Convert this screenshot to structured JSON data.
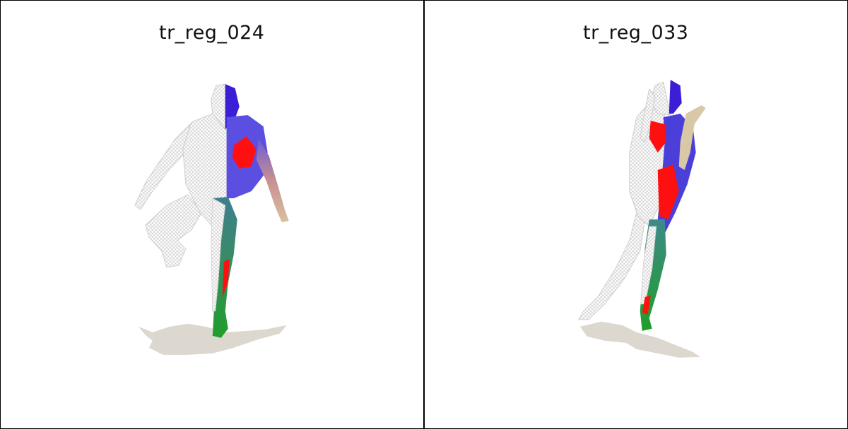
{
  "panels": [
    {
      "title": "tr_reg_024"
    },
    {
      "title": "tr_reg_033"
    }
  ],
  "colors": {
    "wireframe": "#e8e8e8",
    "mesh_blue": "#3a2bd6",
    "mesh_red": "#ff0000",
    "mesh_teal": "#3d8a8a",
    "mesh_green": "#1f9e2a",
    "shadow": "#d9d6cc"
  }
}
